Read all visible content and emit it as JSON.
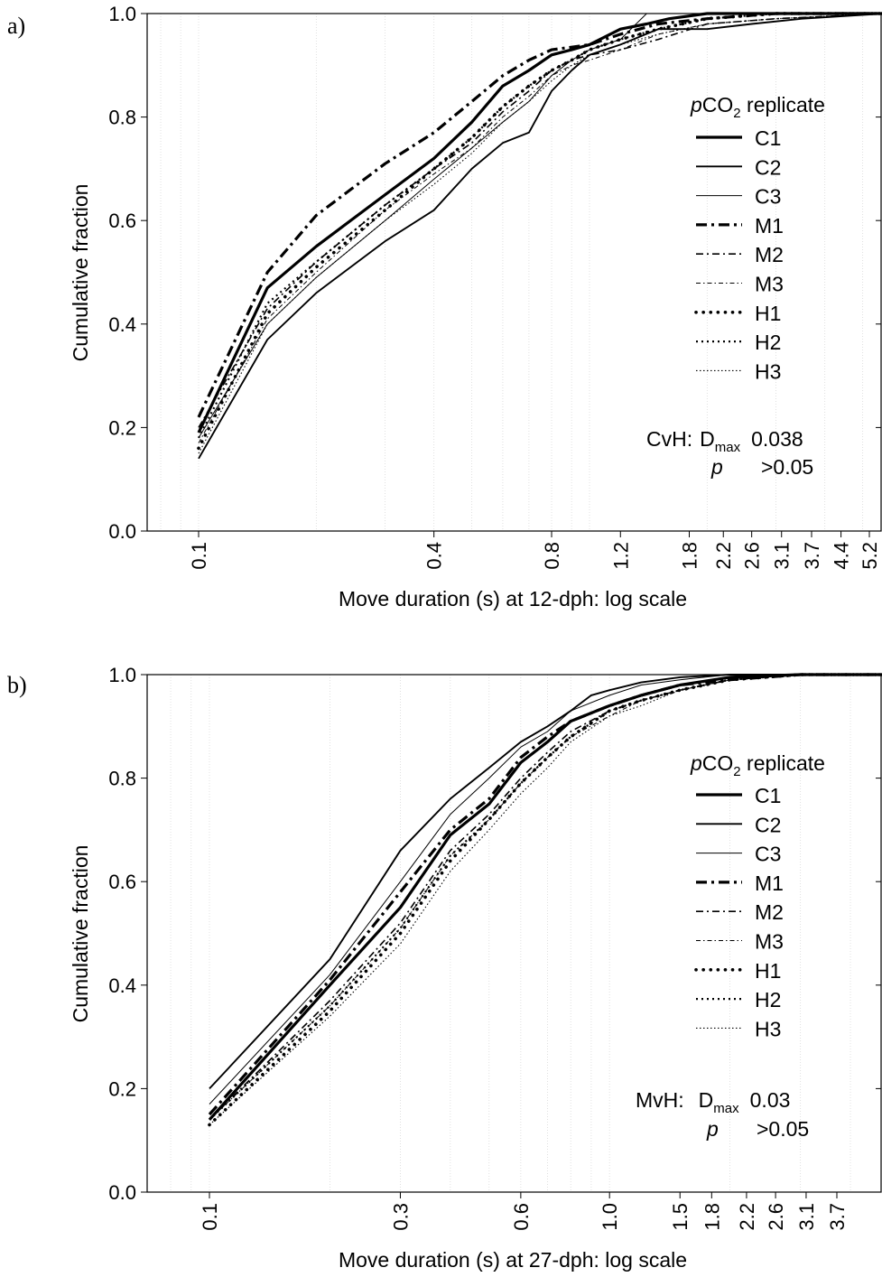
{
  "chart_data": [
    {
      "panel": "a)",
      "type": "line",
      "xlabel": "Move duration (s) at 12-dph: log scale",
      "ylabel": "Cumulative fraction",
      "x_scale": "log",
      "xlim": [
        0.09,
        5.7
      ],
      "ylim": [
        0.0,
        1.0
      ],
      "x_ticks": [
        0.1,
        0.4,
        0.8,
        1.2,
        1.8,
        2.2,
        2.6,
        3.1,
        3.7,
        4.4,
        5.2
      ],
      "x_tick_labels": [
        "0.1",
        "0.4",
        "0.8",
        "1.2",
        "1.8",
        "2.2",
        "2.6",
        "3.1",
        "3.7",
        "4.4",
        "5.2"
      ],
      "y_ticks": [
        0.0,
        0.2,
        0.4,
        0.6,
        0.8,
        1.0
      ],
      "y_tick_labels": [
        "0.0",
        "0.2",
        "0.4",
        "0.6",
        "0.8",
        "1.0"
      ],
      "grid": "vertical dotted minor lines",
      "legend": {
        "title_italic": "p",
        "title_main": "CO",
        "title_sub": "2",
        "title_rest": " replicate",
        "position": "right"
      },
      "annotation": {
        "label": "CvH:",
        "d_main": "D",
        "d_sub": "max",
        "d_value": "0.038",
        "p_label": "p",
        "p_value": ">0.05"
      },
      "series": [
        {
          "name": "C1",
          "style": "thick-solid",
          "x": [
            0.1,
            0.15,
            0.2,
            0.3,
            0.4,
            0.5,
            0.6,
            0.7,
            0.8,
            0.9,
            1.0,
            1.2,
            1.4,
            1.6,
            2.0,
            3.0,
            5.7
          ],
          "y": [
            0.19,
            0.47,
            0.55,
            0.65,
            0.72,
            0.79,
            0.86,
            0.89,
            0.92,
            0.93,
            0.94,
            0.97,
            0.98,
            0.99,
            1.0,
            1.0,
            1.0
          ]
        },
        {
          "name": "C2",
          "style": "medium-solid",
          "x": [
            0.1,
            0.15,
            0.2,
            0.3,
            0.4,
            0.5,
            0.6,
            0.7,
            0.8,
            0.9,
            1.0,
            1.2,
            1.5,
            2.0,
            2.6,
            3.5,
            5.7
          ],
          "y": [
            0.14,
            0.37,
            0.46,
            0.56,
            0.62,
            0.7,
            0.75,
            0.77,
            0.85,
            0.89,
            0.92,
            0.94,
            0.97,
            0.97,
            0.98,
            0.99,
            1.0
          ]
        },
        {
          "name": "C3",
          "style": "thin-solid",
          "x": [
            0.1,
            0.15,
            0.2,
            0.3,
            0.4,
            0.5,
            0.6,
            0.7,
            0.8,
            0.9,
            1.0,
            1.2,
            1.4,
            1.8,
            2.5,
            5.7
          ],
          "y": [
            0.18,
            0.4,
            0.49,
            0.6,
            0.68,
            0.74,
            0.79,
            0.83,
            0.88,
            0.91,
            0.93,
            0.95,
            1.0,
            1.0,
            1.0,
            1.0
          ]
        },
        {
          "name": "M1",
          "style": "thick-dashdot",
          "x": [
            0.1,
            0.15,
            0.2,
            0.3,
            0.4,
            0.5,
            0.6,
            0.7,
            0.8,
            0.9,
            1.0,
            1.2,
            1.5,
            2.0,
            3.0,
            5.7
          ],
          "y": [
            0.22,
            0.5,
            0.61,
            0.71,
            0.77,
            0.83,
            0.88,
            0.91,
            0.93,
            0.935,
            0.94,
            0.96,
            0.98,
            0.99,
            1.0,
            1.0
          ]
        },
        {
          "name": "M2",
          "style": "dashdot",
          "x": [
            0.1,
            0.15,
            0.2,
            0.3,
            0.4,
            0.5,
            0.6,
            0.7,
            0.8,
            0.9,
            1.0,
            1.2,
            1.5,
            2.0,
            3.0,
            5.7
          ],
          "y": [
            0.2,
            0.43,
            0.52,
            0.63,
            0.7,
            0.75,
            0.81,
            0.85,
            0.89,
            0.91,
            0.92,
            0.93,
            0.95,
            0.98,
            0.99,
            1.0
          ]
        },
        {
          "name": "M3",
          "style": "thin-dashdot",
          "x": [
            0.1,
            0.15,
            0.2,
            0.3,
            0.4,
            0.5,
            0.6,
            0.7,
            0.8,
            0.9,
            1.0,
            1.2,
            1.5,
            2.0,
            3.0,
            5.7
          ],
          "y": [
            0.17,
            0.41,
            0.5,
            0.62,
            0.69,
            0.74,
            0.8,
            0.84,
            0.88,
            0.9,
            0.91,
            0.93,
            0.96,
            0.98,
            0.99,
            1.0
          ]
        },
        {
          "name": "H1",
          "style": "thick-dotted",
          "x": [
            0.1,
            0.15,
            0.2,
            0.3,
            0.4,
            0.5,
            0.6,
            0.7,
            0.8,
            0.9,
            1.0,
            1.2,
            1.5,
            2.0,
            3.0,
            5.7
          ],
          "y": [
            0.16,
            0.42,
            0.51,
            0.62,
            0.7,
            0.76,
            0.82,
            0.86,
            0.89,
            0.91,
            0.93,
            0.95,
            0.97,
            0.99,
            1.0,
            1.0
          ]
        },
        {
          "name": "H2",
          "style": "dotted",
          "x": [
            0.1,
            0.15,
            0.2,
            0.3,
            0.4,
            0.5,
            0.6,
            0.7,
            0.8,
            0.9,
            1.0,
            1.2,
            1.5,
            2.0,
            3.0,
            5.7
          ],
          "y": [
            0.18,
            0.44,
            0.52,
            0.63,
            0.7,
            0.76,
            0.82,
            0.86,
            0.89,
            0.91,
            0.93,
            0.95,
            0.97,
            0.99,
            1.0,
            1.0
          ]
        },
        {
          "name": "H3",
          "style": "thin-dotted",
          "x": [
            0.1,
            0.15,
            0.2,
            0.3,
            0.4,
            0.5,
            0.6,
            0.7,
            0.8,
            0.9,
            1.0,
            1.2,
            1.5,
            2.0,
            3.0,
            5.7
          ],
          "y": [
            0.15,
            0.4,
            0.49,
            0.6,
            0.67,
            0.73,
            0.79,
            0.83,
            0.87,
            0.9,
            0.92,
            0.94,
            0.96,
            0.98,
            0.99,
            1.0
          ]
        }
      ]
    },
    {
      "panel": "b)",
      "type": "line",
      "xlabel": "Move duration (s) at 27-dph: log scale",
      "ylabel": "Cumulative fraction",
      "x_scale": "log",
      "xlim": [
        0.085,
        5.4
      ],
      "ylim": [
        0.0,
        1.0
      ],
      "x_ticks": [
        0.1,
        0.3,
        0.6,
        1.0,
        1.5,
        1.8,
        2.2,
        2.6,
        3.1,
        3.7
      ],
      "x_tick_labels": [
        "0.1",
        "0.3",
        "0.6",
        "1.0",
        "1.5",
        "1.8",
        "2.2",
        "2.6",
        "3.1",
        "3.7"
      ],
      "y_ticks": [
        0.0,
        0.2,
        0.4,
        0.6,
        0.8,
        1.0
      ],
      "y_tick_labels": [
        "0.0",
        "0.2",
        "0.4",
        "0.6",
        "0.8",
        "1.0"
      ],
      "grid": "vertical dotted minor lines",
      "legend": {
        "title_italic": "p",
        "title_main": "CO",
        "title_sub": "2",
        "title_rest": " replicate",
        "position": "right"
      },
      "annotation": {
        "label": "MvH:",
        "d_main": "D",
        "d_sub": "max",
        "d_value": "0.03",
        "p_label": "p",
        "p_value": ">0.05"
      },
      "series": [
        {
          "name": "C1",
          "style": "thick-solid",
          "x": [
            0.1,
            0.2,
            0.3,
            0.4,
            0.5,
            0.6,
            0.7,
            0.8,
            1.0,
            1.2,
            1.5,
            2.0,
            3.0,
            5.4
          ],
          "y": [
            0.14,
            0.4,
            0.55,
            0.69,
            0.75,
            0.83,
            0.87,
            0.91,
            0.94,
            0.96,
            0.98,
            0.995,
            1.0,
            1.0
          ]
        },
        {
          "name": "C2",
          "style": "medium-solid",
          "x": [
            0.1,
            0.2,
            0.3,
            0.4,
            0.5,
            0.6,
            0.7,
            0.8,
            0.9,
            1.0,
            1.2,
            1.5,
            2.0,
            3.0,
            5.4
          ],
          "y": [
            0.2,
            0.45,
            0.66,
            0.76,
            0.82,
            0.87,
            0.9,
            0.93,
            0.96,
            0.97,
            0.985,
            0.995,
            1.0,
            1.0,
            1.0
          ]
        },
        {
          "name": "C3",
          "style": "thin-solid",
          "x": [
            0.1,
            0.2,
            0.3,
            0.4,
            0.5,
            0.6,
            0.7,
            0.8,
            1.0,
            1.2,
            1.5,
            2.0,
            3.0,
            5.4
          ],
          "y": [
            0.17,
            0.42,
            0.6,
            0.73,
            0.8,
            0.86,
            0.89,
            0.93,
            0.96,
            0.98,
            0.99,
            1.0,
            1.0,
            1.0
          ]
        },
        {
          "name": "M1",
          "style": "thick-dashdot",
          "x": [
            0.1,
            0.2,
            0.3,
            0.4,
            0.5,
            0.6,
            0.7,
            0.8,
            1.0,
            1.2,
            1.5,
            2.0,
            3.0,
            5.4
          ],
          "y": [
            0.15,
            0.41,
            0.58,
            0.7,
            0.76,
            0.84,
            0.88,
            0.91,
            0.94,
            0.96,
            0.98,
            0.99,
            1.0,
            1.0
          ]
        },
        {
          "name": "M2",
          "style": "dashdot",
          "x": [
            0.1,
            0.2,
            0.3,
            0.4,
            0.5,
            0.6,
            0.7,
            0.8,
            1.0,
            1.2,
            1.5,
            2.0,
            3.0,
            5.4
          ],
          "y": [
            0.14,
            0.37,
            0.52,
            0.66,
            0.73,
            0.8,
            0.85,
            0.89,
            0.93,
            0.95,
            0.97,
            0.99,
            1.0,
            1.0
          ]
        },
        {
          "name": "M3",
          "style": "thin-dashdot",
          "x": [
            0.1,
            0.2,
            0.3,
            0.4,
            0.5,
            0.6,
            0.7,
            0.8,
            1.0,
            1.2,
            1.5,
            2.0,
            3.0,
            5.4
          ],
          "y": [
            0.14,
            0.36,
            0.51,
            0.65,
            0.72,
            0.79,
            0.84,
            0.88,
            0.92,
            0.95,
            0.97,
            0.99,
            1.0,
            1.0
          ]
        },
        {
          "name": "H1",
          "style": "thick-dotted",
          "x": [
            0.1,
            0.2,
            0.3,
            0.4,
            0.5,
            0.6,
            0.7,
            0.8,
            1.0,
            1.2,
            1.5,
            2.0,
            3.0,
            5.4
          ],
          "y": [
            0.13,
            0.35,
            0.5,
            0.64,
            0.72,
            0.79,
            0.84,
            0.88,
            0.93,
            0.95,
            0.97,
            0.99,
            1.0,
            1.0
          ]
        },
        {
          "name": "H2",
          "style": "dotted",
          "x": [
            0.1,
            0.2,
            0.3,
            0.4,
            0.5,
            0.6,
            0.7,
            0.8,
            1.0,
            1.2,
            1.5,
            2.0,
            3.0,
            5.4
          ],
          "y": [
            0.14,
            0.36,
            0.51,
            0.65,
            0.72,
            0.79,
            0.84,
            0.88,
            0.93,
            0.95,
            0.97,
            0.99,
            1.0,
            1.0
          ]
        },
        {
          "name": "H3",
          "style": "thin-dotted",
          "x": [
            0.1,
            0.2,
            0.3,
            0.4,
            0.5,
            0.6,
            0.7,
            0.8,
            1.0,
            1.2,
            1.5,
            2.0,
            3.0,
            5.4
          ],
          "y": [
            0.13,
            0.34,
            0.48,
            0.62,
            0.7,
            0.77,
            0.82,
            0.87,
            0.92,
            0.94,
            0.97,
            0.99,
            1.0,
            1.0
          ]
        }
      ]
    }
  ]
}
